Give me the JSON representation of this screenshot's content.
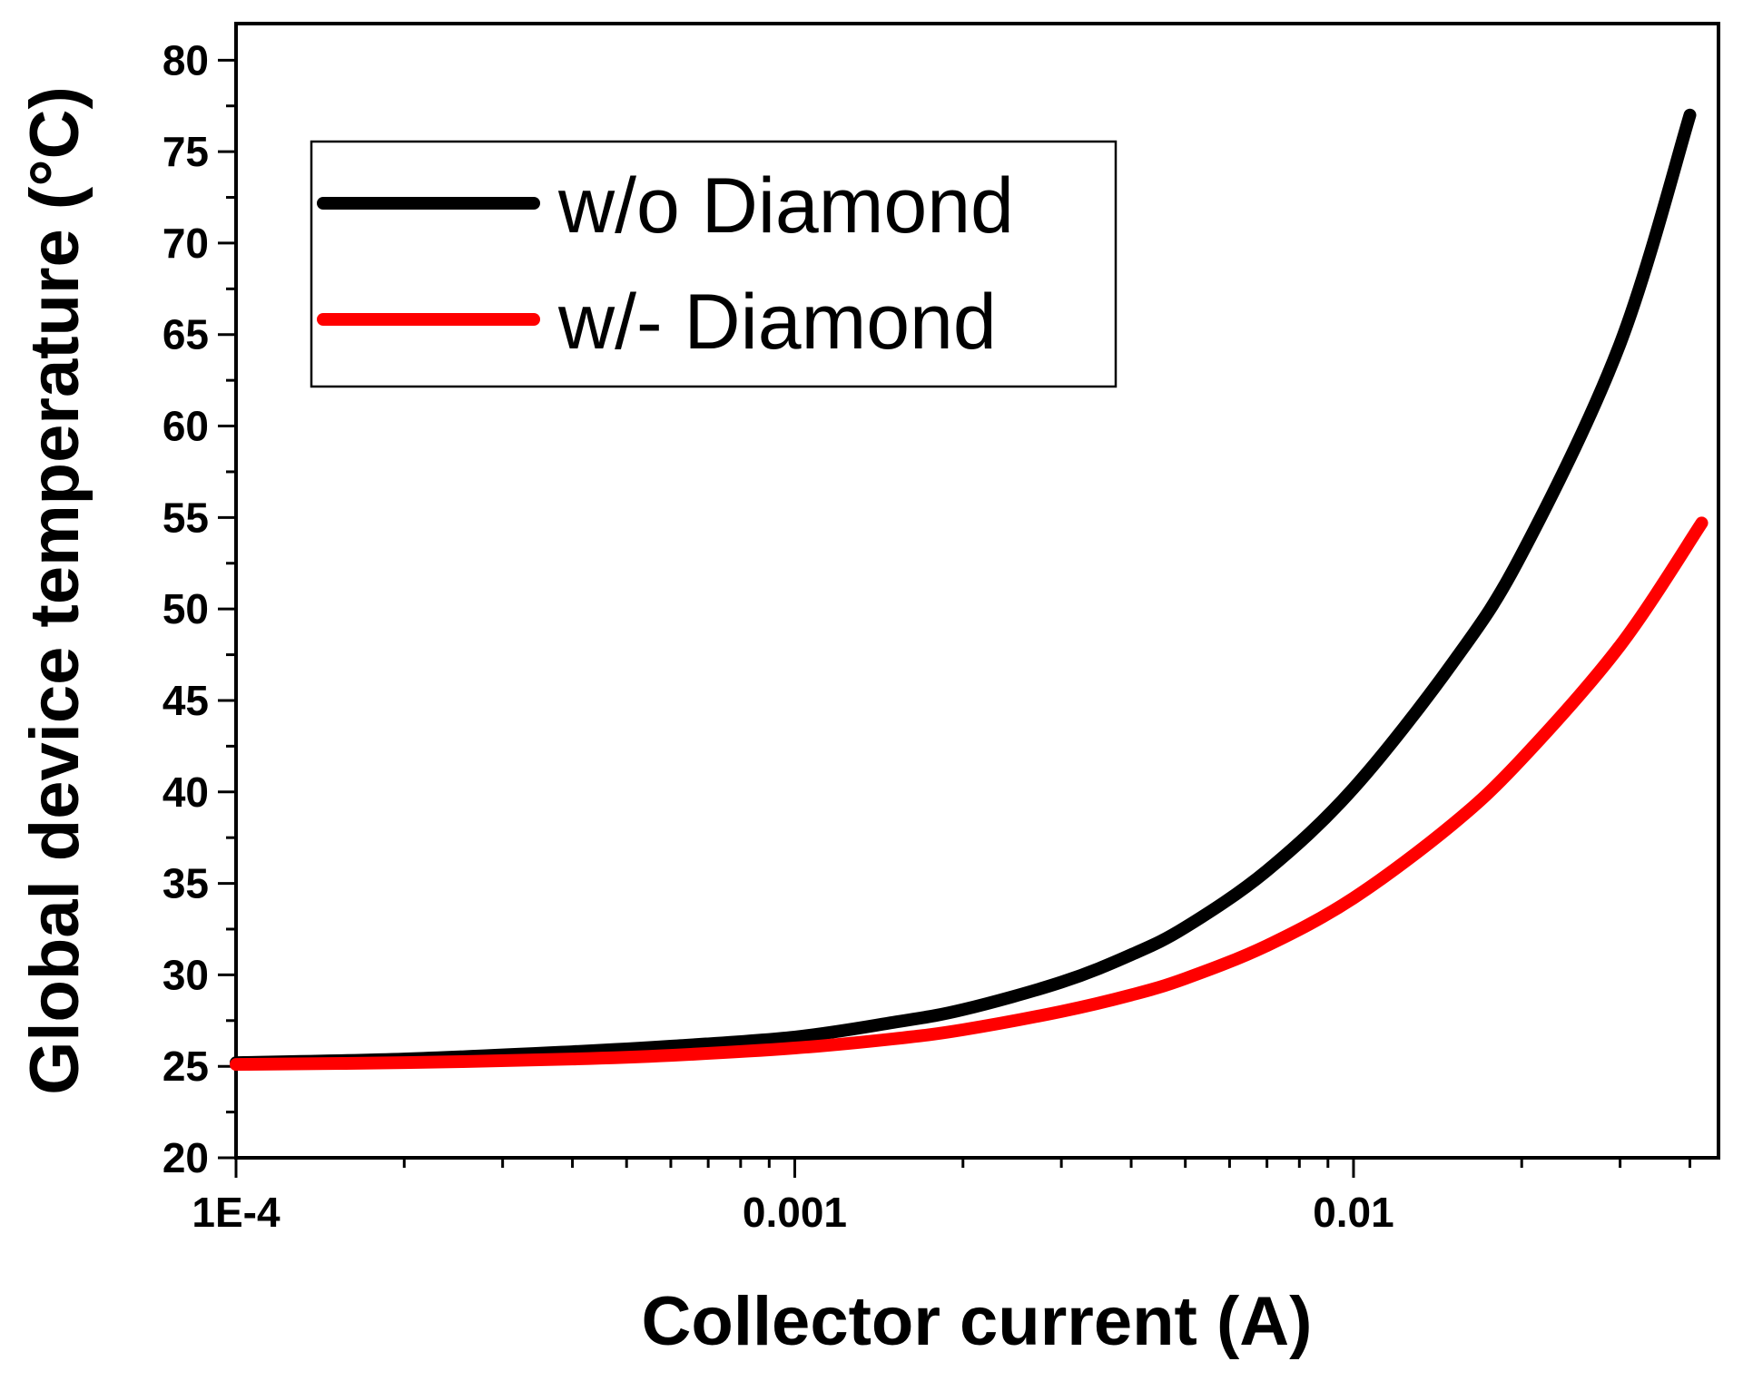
{
  "chart_data": {
    "type": "line",
    "xlabel": "Collector current (A)",
    "ylabel": "Global device temperature (°C)",
    "x_scale": "log",
    "xlim": [
      0.0001,
      0.045
    ],
    "ylim": [
      20,
      82
    ],
    "x_ticks": [
      {
        "value": 0.0001,
        "label": "1E-4"
      },
      {
        "value": 0.001,
        "label": "0.001"
      },
      {
        "value": 0.01,
        "label": "0.01"
      }
    ],
    "y_ticks": [
      {
        "value": 20,
        "label": "20"
      },
      {
        "value": 25,
        "label": "25"
      },
      {
        "value": 30,
        "label": "30"
      },
      {
        "value": 35,
        "label": "35"
      },
      {
        "value": 40,
        "label": "40"
      },
      {
        "value": 45,
        "label": "45"
      },
      {
        "value": 50,
        "label": "50"
      },
      {
        "value": 55,
        "label": "55"
      },
      {
        "value": 60,
        "label": "60"
      },
      {
        "value": 65,
        "label": "65"
      },
      {
        "value": 70,
        "label": "70"
      },
      {
        "value": 75,
        "label": "75"
      },
      {
        "value": 80,
        "label": "80"
      }
    ],
    "grid": false,
    "legend_position": "top-left",
    "series": [
      {
        "name": "w/o Diamond",
        "color": "#000000",
        "x": [
          0.0001,
          0.0002,
          0.0004,
          0.0006,
          0.001,
          0.0015,
          0.002,
          0.003,
          0.004,
          0.005,
          0.007,
          0.01,
          0.015,
          0.02,
          0.03,
          0.04
        ],
        "y": [
          25.2,
          25.4,
          25.8,
          26.1,
          26.6,
          27.4,
          28.1,
          29.6,
          31.1,
          32.6,
          35.7,
          40.2,
          47.0,
          53.0,
          64.5,
          77.0
        ]
      },
      {
        "name": "w/- Diamond",
        "color": "#ff0000",
        "x": [
          0.0001,
          0.0002,
          0.0004,
          0.0006,
          0.001,
          0.0015,
          0.002,
          0.003,
          0.004,
          0.005,
          0.007,
          0.01,
          0.015,
          0.02,
          0.03,
          0.042
        ],
        "y": [
          25.1,
          25.2,
          25.4,
          25.6,
          26.0,
          26.5,
          27.0,
          28.0,
          28.9,
          29.8,
          31.6,
          34.2,
          38.2,
          41.8,
          48.0,
          54.7
        ]
      }
    ]
  }
}
